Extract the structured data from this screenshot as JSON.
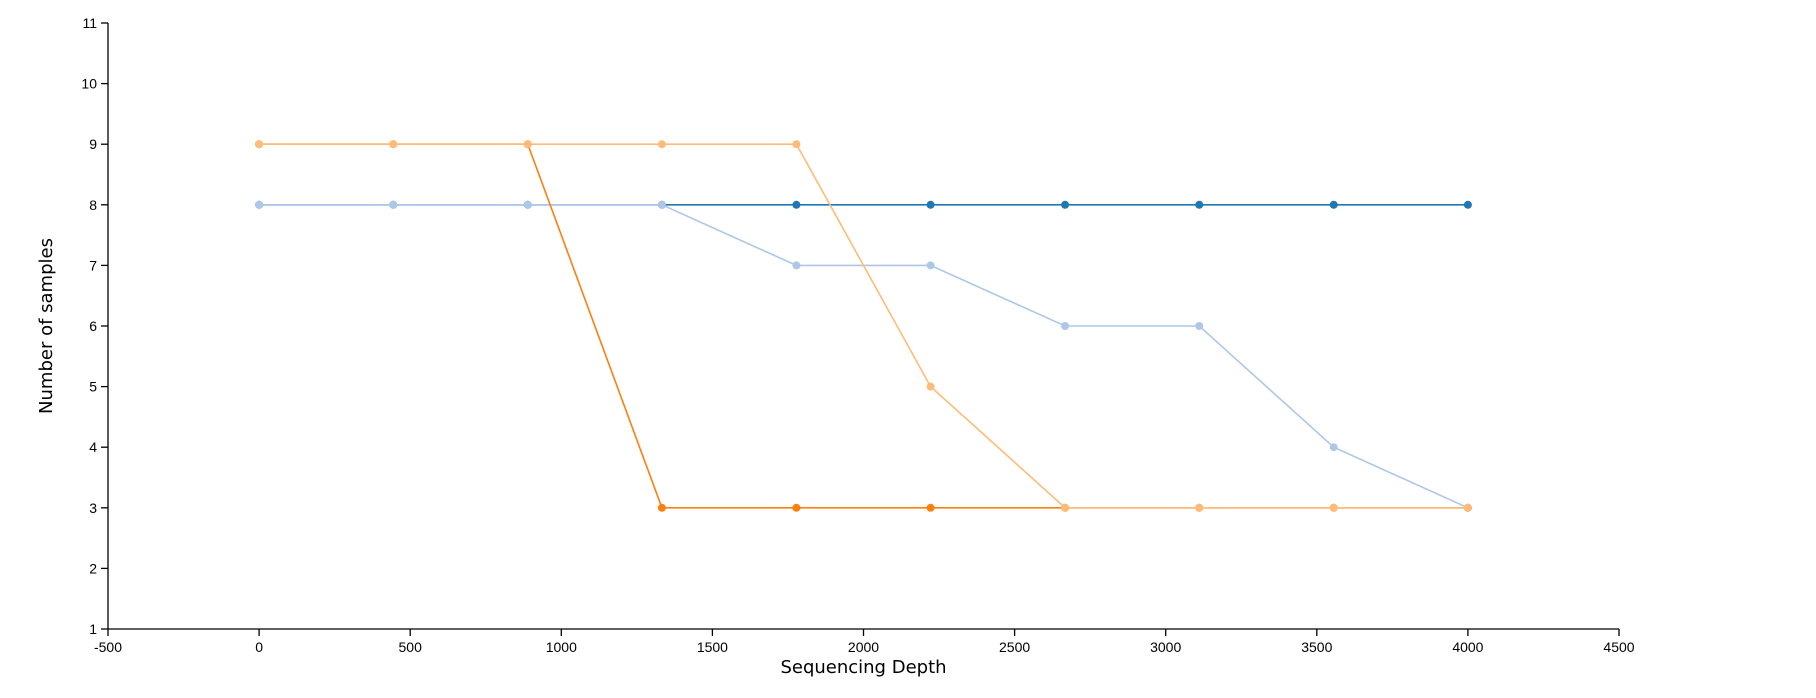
{
  "chart_data": {
    "type": "line",
    "title": "",
    "xlabel": "Sequencing Depth",
    "ylabel": "Number of samples",
    "xlim": [
      -500,
      4500
    ],
    "ylim": [
      1,
      11
    ],
    "xticks": [
      -500,
      0,
      500,
      1000,
      1500,
      2000,
      2500,
      3000,
      3500,
      4000,
      4500
    ],
    "yticks": [
      1,
      2,
      3,
      4,
      5,
      6,
      7,
      8,
      9,
      10,
      11
    ],
    "grid": false,
    "legend": "none",
    "x": [
      0,
      444,
      889,
      1333,
      1778,
      2222,
      2667,
      3111,
      3556,
      4000
    ],
    "series": [
      {
        "color": "#1f77b4",
        "values": [
          8,
          8,
          8,
          8,
          8,
          8,
          8,
          8,
          8,
          8
        ]
      },
      {
        "color": "#aec7e8",
        "values": [
          8,
          8,
          8,
          8,
          7,
          7,
          6,
          6,
          4,
          3
        ]
      },
      {
        "color": "#ff7f0e",
        "values": [
          9,
          9,
          9,
          3,
          3,
          3,
          3,
          3,
          3,
          3
        ]
      },
      {
        "color": "#ffbb78",
        "values": [
          9,
          9,
          9,
          9,
          9,
          5,
          3,
          3,
          3,
          3
        ]
      }
    ]
  }
}
